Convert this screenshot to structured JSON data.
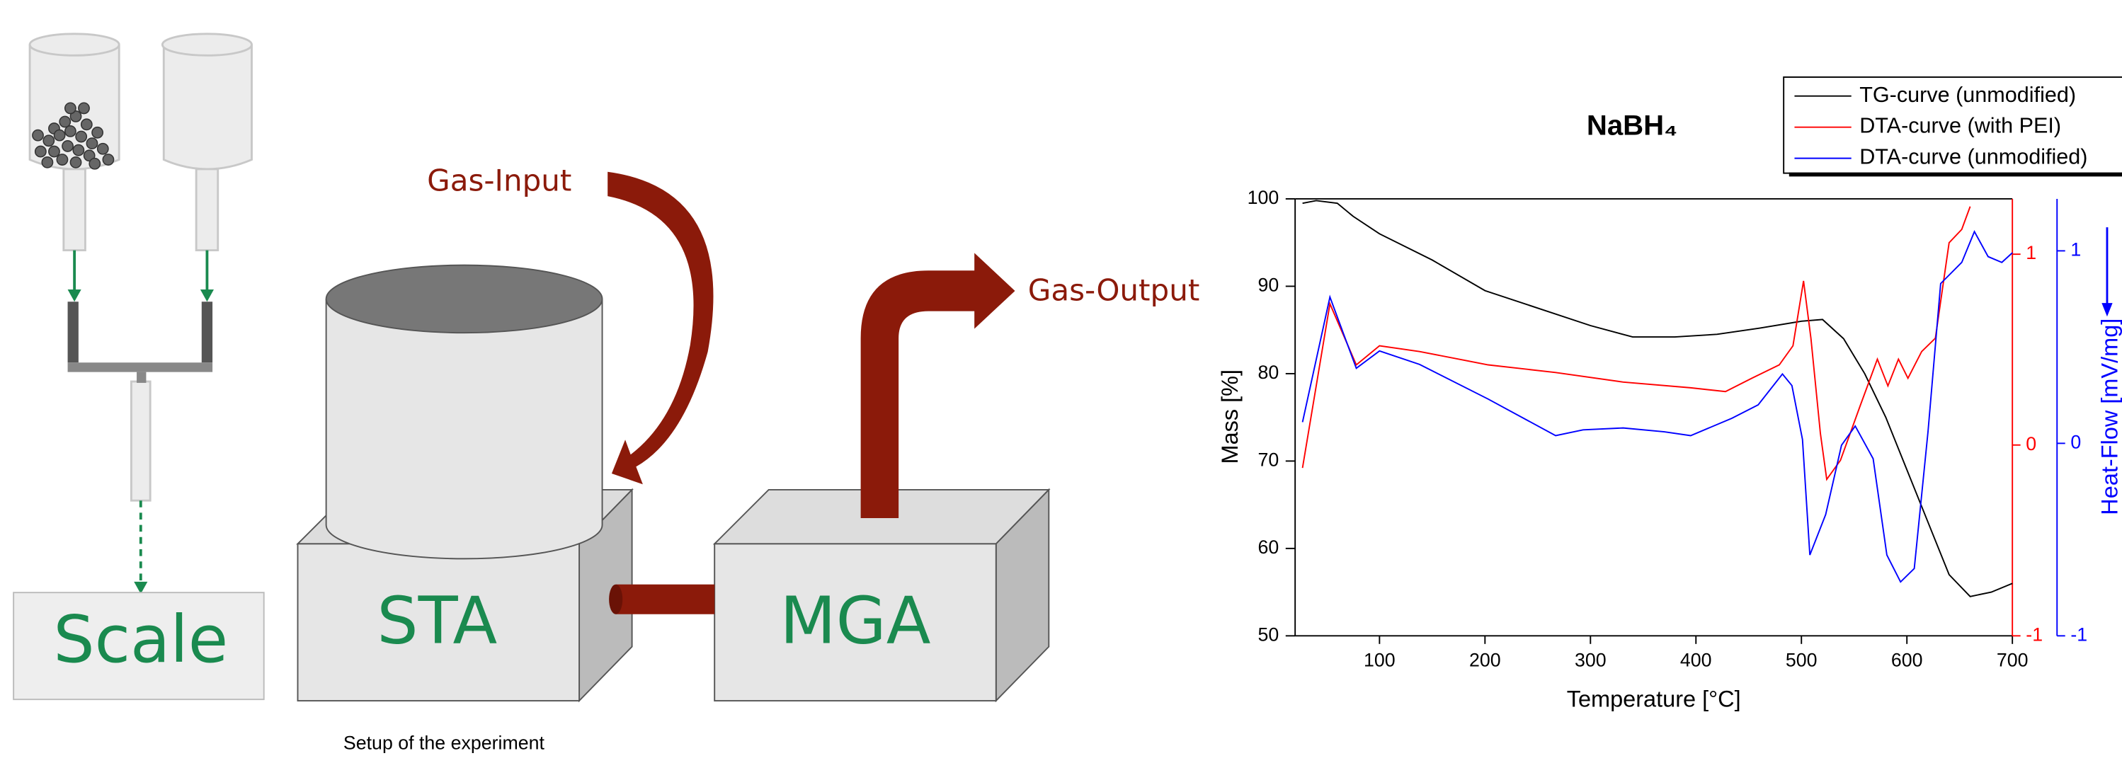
{
  "diagram": {
    "labels": {
      "gas_input": "Gas-Input",
      "gas_output": "Gas-Output",
      "sta": "STA",
      "mga": "MGA",
      "scale": "Scale"
    },
    "caption": "Setup of the experiment"
  },
  "chart_data": {
    "type": "line",
    "title": "NaBH₄",
    "xlabel": "Temperature [°C]",
    "ylabel": "Mass [%]",
    "y3label": "Heat-Flow [mV/mg]",
    "xlim": [
      20,
      700
    ],
    "xticks": [
      100,
      200,
      300,
      400,
      500,
      600,
      700
    ],
    "ylim": [
      50,
      100
    ],
    "yticks": [
      50,
      60,
      70,
      80,
      90,
      100
    ],
    "y2lim": [
      -1,
      1.29
    ],
    "y2ticks": [
      -1,
      0,
      1
    ],
    "y2color": "#ff0000",
    "y3lim": [
      -1,
      1.27
    ],
    "y3ticks": [
      -1,
      0,
      1
    ],
    "y3color": "#0000ff",
    "legend": "top-right",
    "series": [
      {
        "name": "TG-curve (unmodified)",
        "color": "#000000",
        "axis": "y",
        "x": [
          27,
          40,
          60,
          75,
          100,
          150,
          200,
          250,
          300,
          340,
          380,
          420,
          460,
          500,
          520,
          540,
          560,
          580,
          600,
          620,
          640,
          660,
          680,
          700
        ],
        "values": [
          99.5,
          99.8,
          99.5,
          98,
          96,
          93,
          89.5,
          87.5,
          85.5,
          84.2,
          84.2,
          84.5,
          85.2,
          86,
          86.2,
          84,
          80,
          75,
          69,
          63,
          57,
          54.5,
          55,
          56
        ]
      },
      {
        "name": "DTA-curve (with PEI)",
        "color": "#ff0000",
        "axis": "y2",
        "x": [
          27,
          53,
          78,
          100,
          138,
          203,
          267,
          331,
          395,
          428,
          453,
          479,
          492,
          502,
          509,
          518,
          524,
          537,
          556,
          572,
          582,
          592,
          601,
          614,
          627,
          640,
          652,
          660
        ],
        "values": [
          -0.12,
          0.74,
          0.42,
          0.52,
          0.49,
          0.42,
          0.38,
          0.33,
          0.3,
          0.28,
          0.35,
          0.42,
          0.52,
          0.86,
          0.56,
          0.06,
          -0.18,
          -0.08,
          0.21,
          0.45,
          0.31,
          0.45,
          0.35,
          0.49,
          0.56,
          1.06,
          1.13,
          1.25
        ]
      },
      {
        "name": "DTA-curve (unmodified)",
        "color": "#0000ff",
        "axis": "y3",
        "x": [
          27,
          53,
          78,
          100,
          138,
          203,
          267,
          293,
          331,
          370,
          395,
          434,
          459,
          482,
          491,
          501,
          508,
          523,
          538,
          551,
          568,
          581,
          594,
          607,
          620,
          632,
          652,
          664,
          677,
          690,
          700
        ],
        "values": [
          0.11,
          0.76,
          0.39,
          0.48,
          0.41,
          0.23,
          0.04,
          0.07,
          0.08,
          0.06,
          0.04,
          0.13,
          0.2,
          0.36,
          0.3,
          0.02,
          -0.58,
          -0.37,
          -0.01,
          0.09,
          -0.08,
          -0.58,
          -0.72,
          -0.65,
          0.06,
          0.83,
          0.94,
          1.1,
          0.97,
          0.94,
          0.99
        ]
      }
    ]
  }
}
